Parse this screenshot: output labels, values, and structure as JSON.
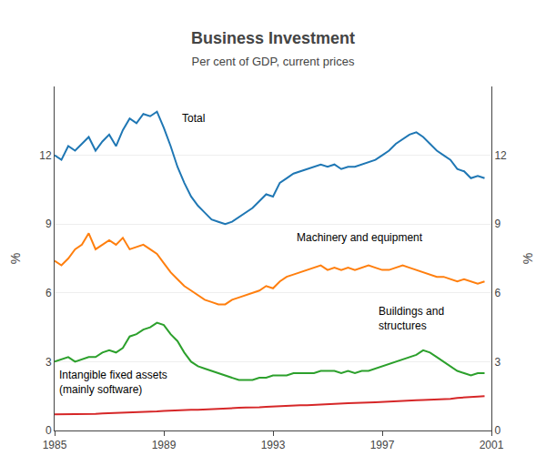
{
  "chart_data": {
    "type": "line",
    "title": "Business Investment",
    "subtitle": "Per cent of GDP, current prices",
    "ylabel": "%",
    "y2label": "%",
    "xlim": [
      1985,
      2001
    ],
    "xticks": [
      1985,
      1989,
      1993,
      1997,
      2001
    ],
    "ylim": [
      0,
      15
    ],
    "yticks": [
      0,
      3,
      6,
      9,
      12
    ],
    "y2lim": [
      0,
      15
    ],
    "y2ticks": [
      0,
      3,
      6,
      9,
      12
    ],
    "grid": true,
    "x": [
      1985.0,
      1985.25,
      1985.5,
      1985.75,
      1986.0,
      1986.25,
      1986.5,
      1986.75,
      1987.0,
      1987.25,
      1987.5,
      1987.75,
      1988.0,
      1988.25,
      1988.5,
      1988.75,
      1989.0,
      1989.25,
      1989.5,
      1989.75,
      1990.0,
      1990.25,
      1990.5,
      1990.75,
      1991.0,
      1991.25,
      1991.5,
      1991.75,
      1992.0,
      1992.25,
      1992.5,
      1992.75,
      1993.0,
      1993.25,
      1993.5,
      1993.75,
      1994.0,
      1994.25,
      1994.5,
      1994.75,
      1995.0,
      1995.25,
      1995.5,
      1995.75,
      1996.0,
      1996.25,
      1996.5,
      1996.75,
      1997.0,
      1997.25,
      1997.5,
      1997.75,
      1998.0,
      1998.25,
      1998.5,
      1998.75,
      1999.0,
      1999.25,
      1999.5,
      1999.75,
      2000.0,
      2000.25,
      2000.5,
      2000.75
    ],
    "series": [
      {
        "values": [
          12.0,
          11.8,
          12.4,
          12.2,
          12.5,
          12.8,
          12.2,
          12.6,
          12.9,
          12.4,
          13.1,
          13.6,
          13.4,
          13.8,
          13.7,
          13.9,
          13.2,
          12.4,
          11.5,
          10.8,
          10.2,
          9.8,
          9.5,
          9.2,
          9.1,
          9.0,
          9.1,
          9.3,
          9.5,
          9.7,
          10.0,
          10.3,
          10.2,
          10.8,
          11.0,
          11.2,
          11.3,
          11.4,
          11.5,
          11.6,
          11.5,
          11.6,
          11.4,
          11.5,
          11.5,
          11.6,
          11.7,
          11.8,
          12.0,
          12.2,
          12.5,
          12.7,
          12.9,
          13.0,
          12.8,
          12.5,
          12.2,
          12.0,
          11.8,
          11.4,
          11.3,
          11.0,
          11.1,
          11.0
        ]
      },
      {
        "values": [
          7.4,
          7.2,
          7.5,
          7.9,
          8.1,
          8.6,
          7.9,
          8.1,
          8.3,
          8.1,
          8.4,
          7.9,
          8.0,
          8.1,
          7.9,
          7.7,
          7.3,
          6.9,
          6.6,
          6.3,
          6.1,
          5.9,
          5.7,
          5.6,
          5.5,
          5.5,
          5.7,
          5.8,
          5.9,
          6.0,
          6.1,
          6.3,
          6.2,
          6.5,
          6.7,
          6.8,
          6.9,
          7.0,
          7.1,
          7.2,
          7.0,
          7.1,
          7.0,
          7.1,
          7.0,
          7.1,
          7.2,
          7.1,
          7.0,
          7.0,
          7.1,
          7.2,
          7.1,
          7.0,
          6.9,
          6.8,
          6.7,
          6.7,
          6.6,
          6.5,
          6.6,
          6.5,
          6.4,
          6.5
        ]
      },
      {
        "values": [
          3.0,
          3.1,
          3.2,
          3.0,
          3.1,
          3.2,
          3.2,
          3.4,
          3.5,
          3.4,
          3.6,
          4.1,
          4.2,
          4.4,
          4.5,
          4.7,
          4.6,
          4.2,
          3.9,
          3.4,
          3.0,
          2.8,
          2.7,
          2.6,
          2.5,
          2.4,
          2.3,
          2.2,
          2.2,
          2.2,
          2.3,
          2.3,
          2.4,
          2.4,
          2.4,
          2.5,
          2.5,
          2.5,
          2.5,
          2.6,
          2.6,
          2.6,
          2.5,
          2.6,
          2.5,
          2.6,
          2.6,
          2.7,
          2.8,
          2.9,
          3.0,
          3.1,
          3.2,
          3.3,
          3.5,
          3.4,
          3.2,
          3.0,
          2.8,
          2.6,
          2.5,
          2.4,
          2.5,
          2.5
        ]
      },
      {
        "values": [
          0.7,
          0.7,
          0.7,
          0.7,
          0.72,
          0.72,
          0.72,
          0.74,
          0.75,
          0.75,
          0.78,
          0.78,
          0.8,
          0.8,
          0.82,
          0.83,
          0.85,
          0.87,
          0.88,
          0.89,
          0.9,
          0.9,
          0.92,
          0.93,
          0.95,
          0.97,
          0.98,
          0.99,
          1.0,
          1.0,
          1.01,
          1.03,
          1.05,
          1.05,
          1.08,
          1.08,
          1.1,
          1.1,
          1.12,
          1.13,
          1.15,
          1.17,
          1.18,
          1.19,
          1.2,
          1.2,
          1.22,
          1.23,
          1.25,
          1.25,
          1.27,
          1.28,
          1.3,
          1.32,
          1.33,
          1.34,
          1.36,
          1.37,
          1.38,
          1.42,
          1.43,
          1.46,
          1.48,
          1.5
        ]
      }
    ],
    "annotations": [
      {
        "text": "Total",
        "x": 1989.6,
        "y": 13.6
      },
      {
        "text": "Machinery and equipment",
        "x": 1993.8,
        "y": 8.4
      },
      {
        "text": "Buildings and\nstructures",
        "x": 1996.8,
        "y": 4.9
      },
      {
        "text": "Intangible fixed assets\n(mainly software)",
        "x": 1985.1,
        "y": 2.1
      }
    ]
  }
}
